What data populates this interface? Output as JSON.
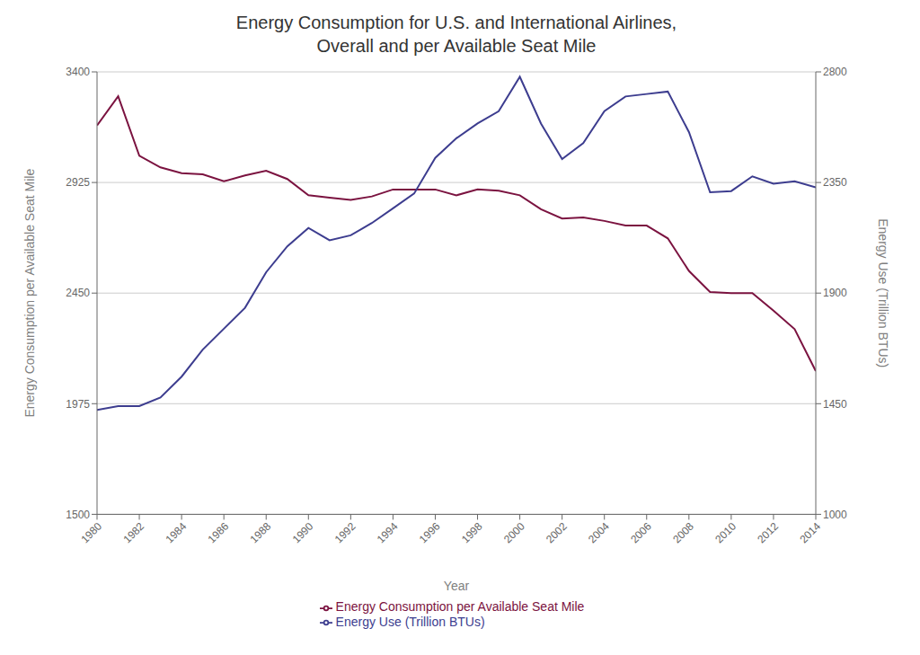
{
  "chart_data": {
    "type": "line",
    "title": "Energy Consumption for U.S. and International Airlines,\nOverall and per Available Seat Mile",
    "xlabel": "Year",
    "ylabel": "Energy Consumption per Available Seat Mile",
    "y2label": "Energy Use (Trillion BTUs)",
    "x": [
      1980,
      1981,
      1982,
      1983,
      1984,
      1985,
      1986,
      1987,
      1988,
      1989,
      1990,
      1991,
      1992,
      1993,
      1994,
      1995,
      1996,
      1997,
      1998,
      1999,
      2000,
      2001,
      2002,
      2003,
      2004,
      2005,
      2006,
      2007,
      2008,
      2009,
      2010,
      2011,
      2012,
      2013,
      2014
    ],
    "series": [
      {
        "name": "Energy Consumption per Available Seat Mile",
        "color": "#7b1340",
        "values": [
          3170,
          3295,
          3040,
          2990,
          2965,
          2960,
          2930,
          2955,
          2975,
          2940,
          2870,
          2860,
          2850,
          2865,
          2895,
          2895,
          2895,
          2870,
          2895,
          2890,
          2870,
          2810,
          2770,
          2775,
          2760,
          2740,
          2740,
          2685,
          2545,
          2455,
          2450,
          2450,
          2375,
          2295,
          2115
        ]
      },
      {
        "name": "Energy Use (Trillion BTUs)",
        "color": "#3d3d8f",
        "axis": "y2",
        "values": [
          1425,
          1440,
          1440,
          1475,
          1560,
          1670,
          1755,
          1840,
          1985,
          2090,
          2165,
          2115,
          2135,
          2185,
          2245,
          2305,
          2450,
          2530,
          2590,
          2640,
          2780,
          2590,
          2445,
          2510,
          2640,
          2700,
          2710,
          2720,
          2555,
          2310,
          2315,
          2375,
          2345,
          2355,
          2330
        ]
      }
    ],
    "xlim": [
      1980,
      2014
    ],
    "xticks": [
      1980,
      1982,
      1984,
      1986,
      1988,
      1990,
      1992,
      1994,
      1996,
      1998,
      2000,
      2002,
      2004,
      2006,
      2008,
      2010,
      2012,
      2014
    ],
    "ylim": [
      1500,
      3400
    ],
    "yticks": [
      1500,
      1975,
      2450,
      2925,
      3400
    ],
    "y2lim": [
      1000,
      2800
    ],
    "y2ticks": [
      1000,
      1450,
      1900,
      2350,
      2800
    ],
    "grid": "y",
    "legend": "bottom"
  }
}
